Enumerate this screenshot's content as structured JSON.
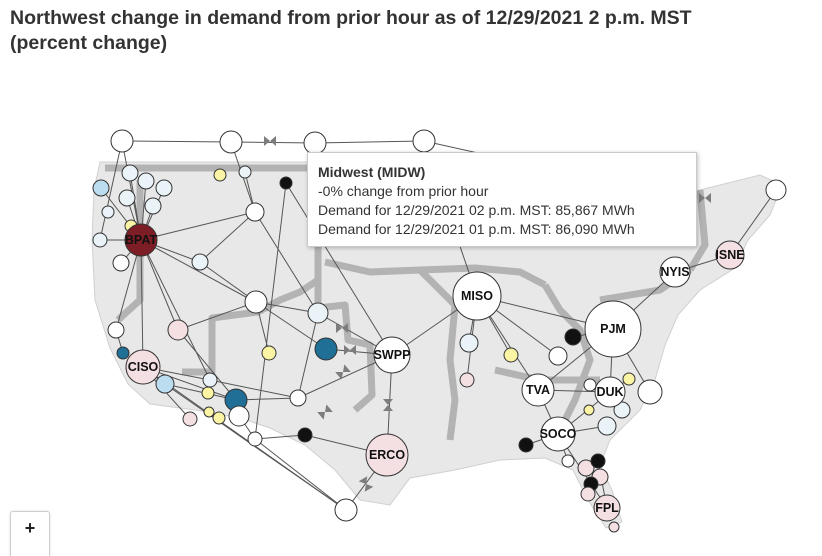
{
  "title": {
    "line1": "Northwest change in demand from prior hour as of 12/29/2021 2 p.m. MST",
    "line2": "(percent change)"
  },
  "tooltip": {
    "title": "Midwest (MIDW)",
    "change": "-0% change from prior hour",
    "demand_current": "Demand for 12/29/2021 02 p.m. MST: 85,867 MWh",
    "demand_prior": "Demand for 12/29/2021 01 p.m. MST: 86,090 MWh"
  },
  "zoom": {
    "in_label": "+"
  },
  "colors": {
    "edge": "#555555",
    "region_border": "#b3b3b3",
    "land": "#e8e8e8",
    "white": "#ffffff",
    "light_blue": "#eaf3f8",
    "sky": "#bcdcef",
    "teal": "#1f6f96",
    "yellow": "#fbf4a4",
    "pink": "#f4dfe2",
    "maroon": "#7d1e26",
    "black": "#111111"
  },
  "map": {
    "labeled_nodes": [
      {
        "id": "BPAT",
        "label": "BPAT",
        "fill": "maroon"
      },
      {
        "id": "CISO",
        "label": "CISO",
        "fill": "pink"
      },
      {
        "id": "SWPP",
        "label": "SWPP",
        "fill": "white"
      },
      {
        "id": "ERCO",
        "label": "ERCO",
        "fill": "pink"
      },
      {
        "id": "MISO",
        "label": "MISO",
        "fill": "white"
      },
      {
        "id": "PJM",
        "label": "PJM",
        "fill": "white"
      },
      {
        "id": "TVA",
        "label": "TVA",
        "fill": "white"
      },
      {
        "id": "DUK",
        "label": "DUK",
        "fill": "white"
      },
      {
        "id": "SOCO",
        "label": "SOCO",
        "fill": "white"
      },
      {
        "id": "FPL",
        "label": "FPL",
        "fill": "pink"
      },
      {
        "id": "NYIS",
        "label": "NYIS",
        "fill": "white"
      },
      {
        "id": "ISNE",
        "label": "ISNE",
        "fill": "pink"
      }
    ]
  }
}
